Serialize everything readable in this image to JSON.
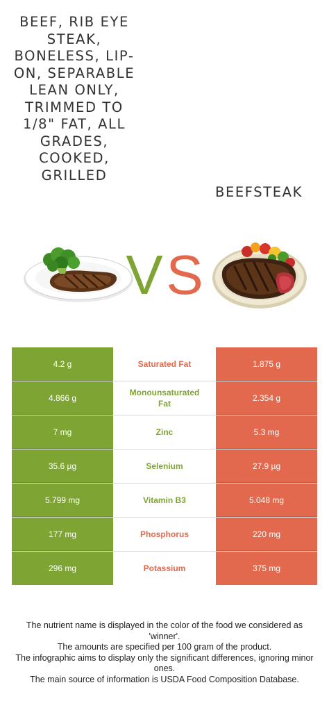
{
  "food_left": {
    "name": "BEEF, RIB EYE STEAK, BONELESS, LIP-ON, SEPARABLE LEAN ONLY, TRIMMED TO 1/8\" FAT, ALL GRADES, COOKED, GRILLED",
    "color": "#7ea533"
  },
  "food_right": {
    "name": "BEEFSTEAK",
    "color": "#e2694d"
  },
  "vs": {
    "v": "V",
    "s": "S"
  },
  "nutrients": [
    {
      "name": "Saturated Fat",
      "left": "4.2 g",
      "right": "1.875 g",
      "winner": "right"
    },
    {
      "name": "Monounsaturated Fat",
      "left": "4.866 g",
      "right": "2.354 g",
      "winner": "left"
    },
    {
      "name": "Zinc",
      "left": "7 mg",
      "right": "5.3 mg",
      "winner": "right"
    },
    {
      "name": "Selenium",
      "left": "35.6 µg",
      "right": "27.9 µg",
      "winner": "left"
    },
    {
      "name": "Vitamin B3",
      "left": "5.799 mg",
      "right": "5.048 mg",
      "winner": "left"
    },
    {
      "name": "Phosphorus",
      "left": "177 mg",
      "right": "220 mg",
      "winner": "right"
    },
    {
      "name": "Potassium",
      "left": "296 mg",
      "right": "375 mg",
      "winner": "right"
    }
  ],
  "footer": [
    "The nutrient name is displayed in the color of the food we considered as 'winner'.",
    "The amounts are specified per 100 gram of the product.",
    "The infographic aims to display only the significant differences, ignoring minor ones.",
    "The main source of information is USDA Food Composition Database."
  ]
}
